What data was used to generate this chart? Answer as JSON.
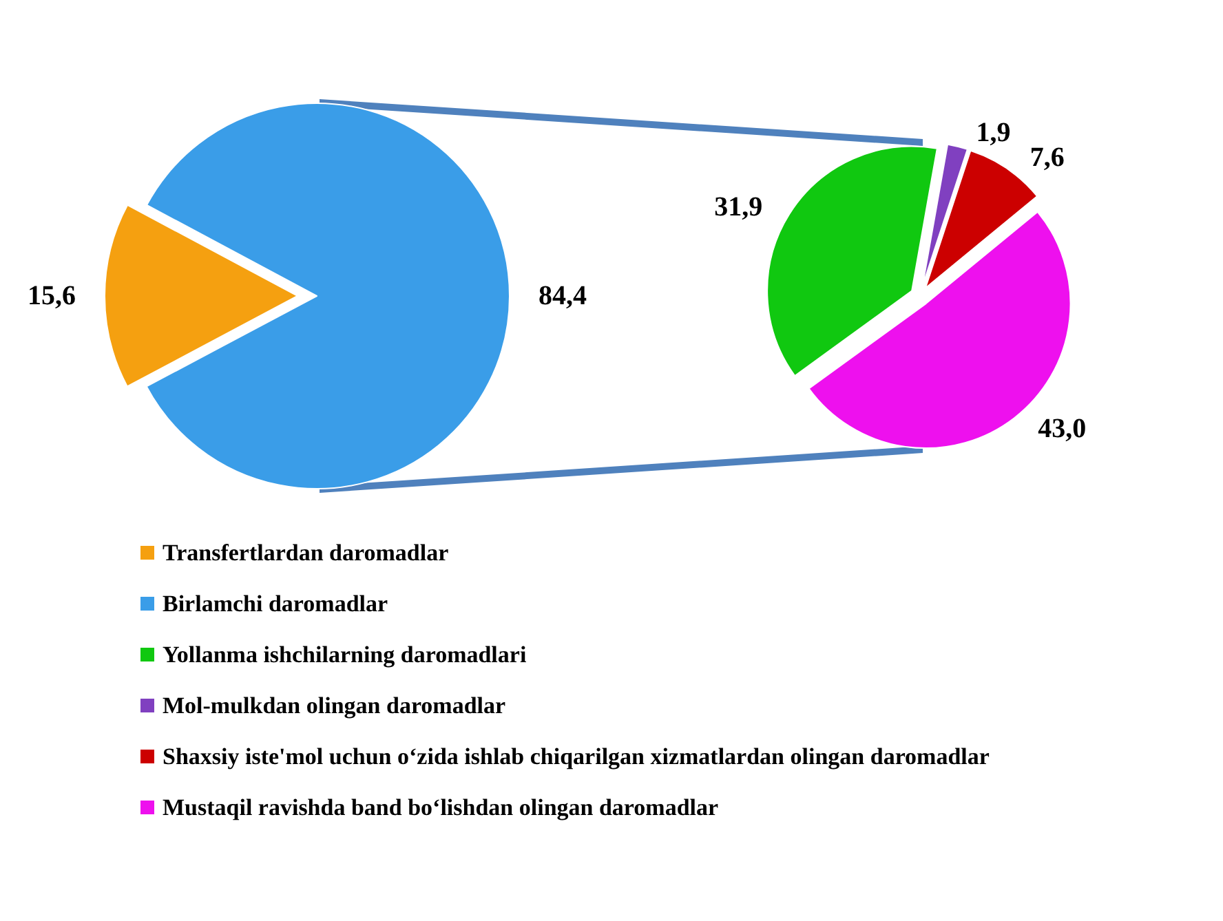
{
  "chart_data": [
    {
      "type": "pie",
      "categories": [
        "Transfertlardan daromadlar",
        "Birlamchi daromadlar"
      ],
      "values": [
        15.6,
        84.4
      ],
      "colors": [
        "#f5a010",
        "#3a9de8"
      ],
      "value_labels": [
        "15,6",
        "84,4"
      ],
      "legend": "bottom left"
    },
    {
      "type": "pie",
      "categories": [
        "Yollanma ishchilarning daromadlari",
        "Mol-mulkdan olingan daromadlar",
        "Shaxsiy iste'mol uchun o‘zida ishlab chiqarilgan xizmatlardan olingan daromadlar",
        "Mustaqil ravishda band bo‘lishdan olingan daromadlar"
      ],
      "values": [
        31.9,
        1.9,
        7.6,
        43.0
      ],
      "colors": [
        "#10c810",
        "#8040c0",
        "#cc0000",
        "#ee10ee"
      ],
      "value_labels": [
        "31,9",
        "1,9",
        "7,6",
        "43,0"
      ],
      "legend": "bottom left"
    }
  ]
}
